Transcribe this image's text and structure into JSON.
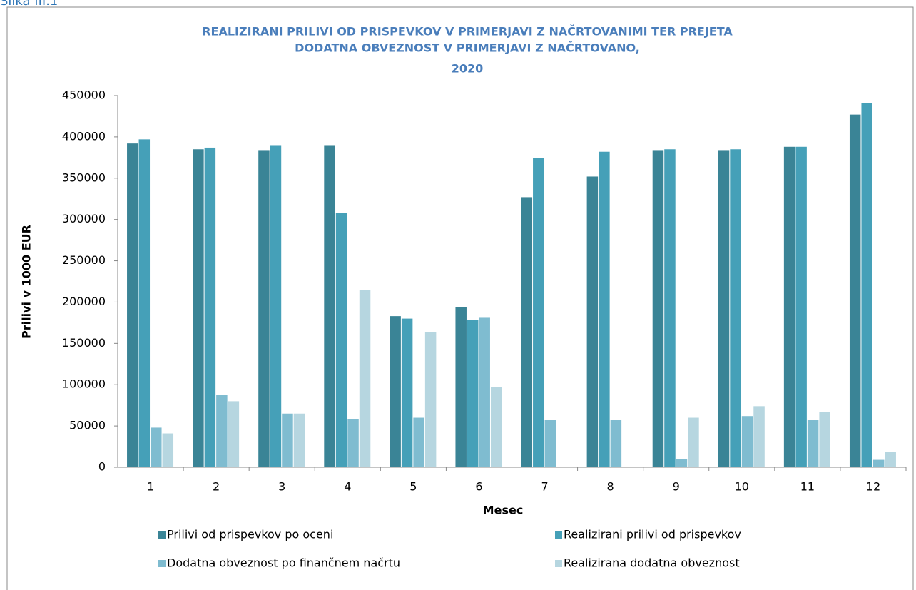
{
  "caption": "Slika III.1",
  "chart_data": {
    "type": "bar",
    "title": [
      "REALIZIRANI PRILIVI OD PRISPEVKOV V PRIMERJAVI Z NAČRTOVANIMI TER PREJETA",
      "DODATNA OBVEZNOST V PRIMERJAVI Z NAČRTOVANO,",
      "2020"
    ],
    "x_label": "Mesec",
    "y_label": "Prilivi v 1000 EUR",
    "categories": [
      "1",
      "2",
      "3",
      "4",
      "5",
      "6",
      "7",
      "8",
      "9",
      "10",
      "11",
      "12"
    ],
    "series": [
      {
        "name": "Prilivi od prispevkov po oceni",
        "color": "#3a8496",
        "values": [
          392000,
          385000,
          384000,
          390000,
          183000,
          194000,
          327000,
          352000,
          384000,
          384000,
          388000,
          427000
        ]
      },
      {
        "name": "Realizirani prilivi od prispevkov",
        "color": "#45a0b8",
        "values": [
          397000,
          387000,
          390000,
          308000,
          180000,
          178000,
          374000,
          382000,
          385000,
          385000,
          388000,
          441000
        ]
      },
      {
        "name": "Dodatna obveznost po finančnem načrtu",
        "color": "#7fbcd0",
        "values": [
          48000,
          88000,
          65000,
          58000,
          60000,
          181000,
          57000,
          57000,
          10000,
          62000,
          57000,
          9000
        ]
      },
      {
        "name": "Realizirana dodatna obveznost",
        "color": "#b6d6e0",
        "values": [
          41000,
          80000,
          65000,
          215000,
          164000,
          97000,
          0,
          0,
          60000,
          74000,
          67000,
          19000
        ]
      }
    ],
    "ylim": [
      0,
      450000
    ],
    "yticks": [
      0,
      50000,
      100000,
      150000,
      200000,
      250000,
      300000,
      350000,
      400000,
      450000
    ],
    "grid": false,
    "legend": "bottom"
  }
}
